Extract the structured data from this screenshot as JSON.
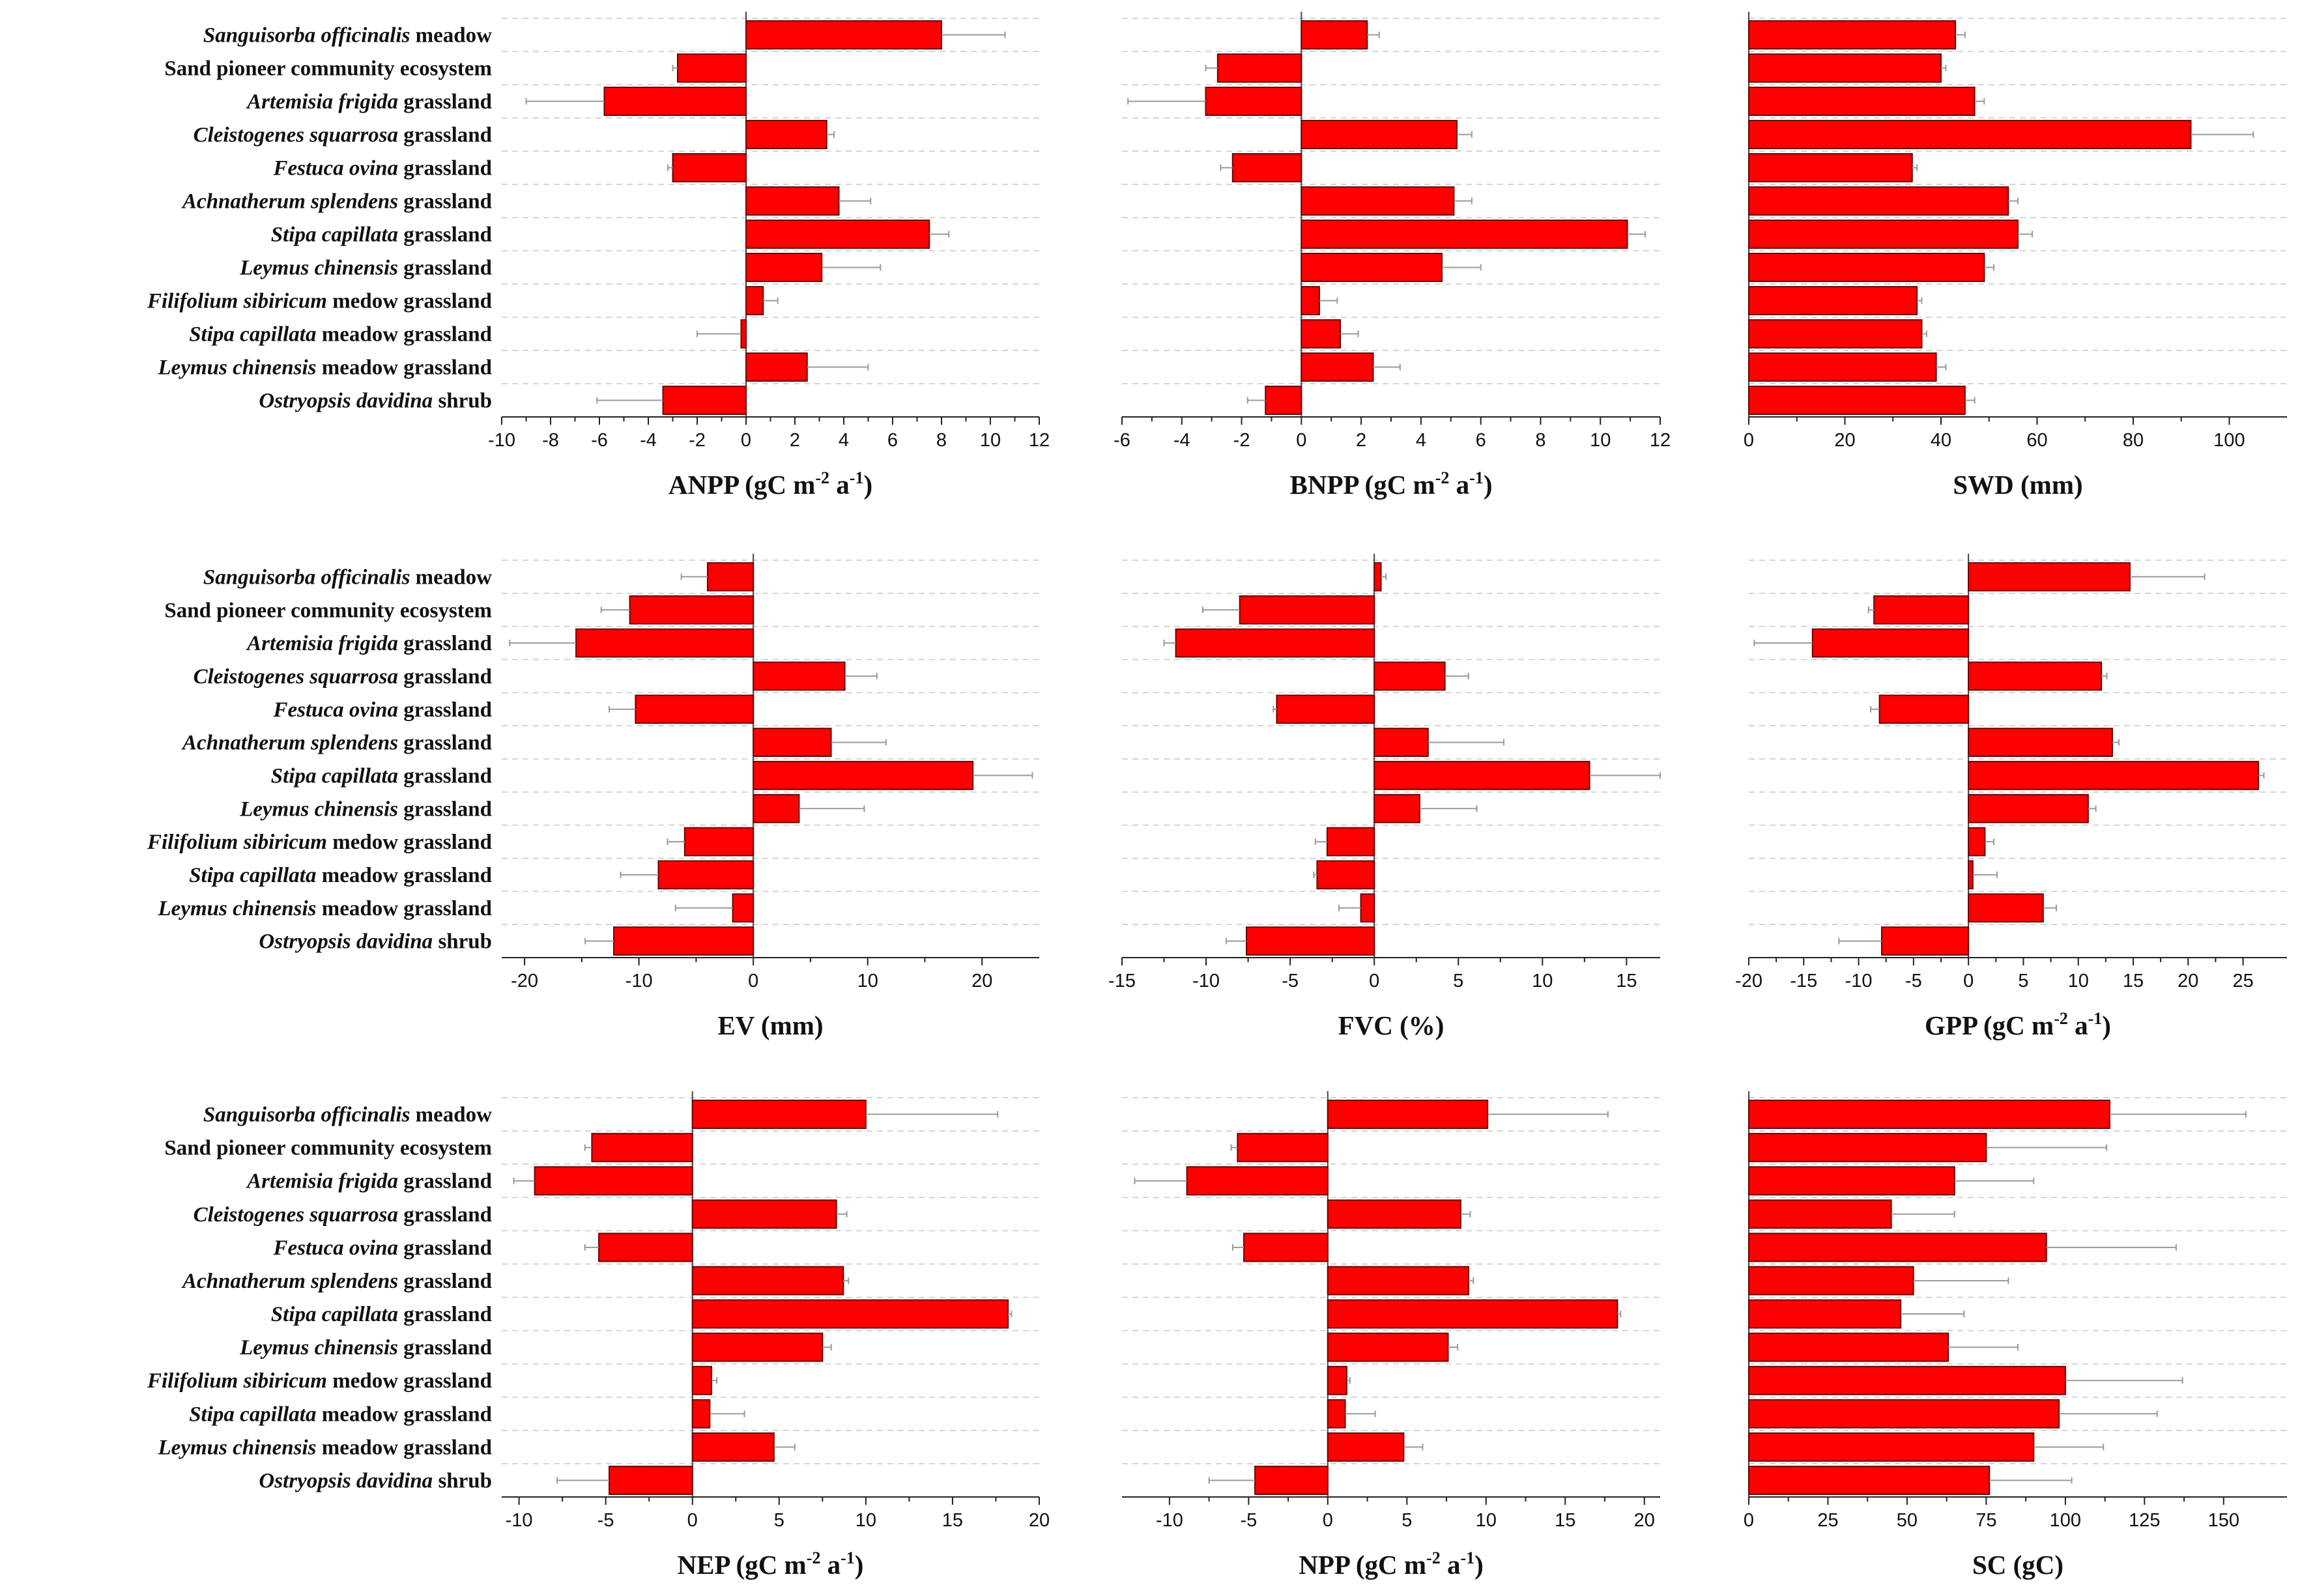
{
  "chart_data": {
    "type": "bar",
    "orientation": "horizontal",
    "categories": [
      {
        "italic": "Sanguisorba officinalis",
        "rest": " meadow"
      },
      {
        "italic": "",
        "rest": "Sand pioneer community ecosystem"
      },
      {
        "italic": "Artemisia frigida",
        "rest": " grassland"
      },
      {
        "italic": "Cleistogenes squarrosa",
        "rest": " grassland"
      },
      {
        "italic": "Festuca ovina",
        "rest": " grassland"
      },
      {
        "italic": "Achnatherum splendens",
        "rest": " grassland"
      },
      {
        "italic": "Stipa capillata",
        "rest": " grassland"
      },
      {
        "italic": "Leymus chinensis",
        "rest": " grassland"
      },
      {
        "italic": "Filifolium sibiricum",
        "rest": " medow grassland"
      },
      {
        "italic": "Stipa capillata",
        "rest": " meadow grassland"
      },
      {
        "italic": "Leymus chinensis",
        "rest": " meadow grassland"
      },
      {
        "italic": "Ostryopsis davidina",
        "rest": " shrub"
      }
    ],
    "colors": {
      "bar": "#ff0000",
      "bar_edge": "#6b0000",
      "error_bar": "#9a9a9a",
      "grid": "#c8c8c8"
    },
    "panels": [
      {
        "id": "anpp",
        "xlabel": {
          "main": "ANPP (gC m",
          "sup1": "-2",
          "mid": " a",
          "sup2": "-1",
          "end": ")"
        },
        "xlim": [
          -10,
          12
        ],
        "ticks": [
          -10,
          -8,
          -6,
          -4,
          -2,
          0,
          2,
          4,
          6,
          8,
          10,
          12
        ],
        "values": [
          8.0,
          -2.8,
          -5.8,
          3.3,
          -3.0,
          3.8,
          7.5,
          3.1,
          0.7,
          -0.2,
          2.5,
          -3.4
        ],
        "errors": [
          2.6,
          0.2,
          3.2,
          0.3,
          0.2,
          1.3,
          0.8,
          2.4,
          0.6,
          1.8,
          2.5,
          2.7
        ]
      },
      {
        "id": "bnpp",
        "xlabel": {
          "main": "BNPP (gC m",
          "sup1": "-2",
          "mid": " a",
          "sup2": "-1",
          "end": ")"
        },
        "xlim": [
          -6,
          12
        ],
        "ticks": [
          -6,
          -4,
          -2,
          0,
          2,
          4,
          6,
          8,
          10,
          12
        ],
        "values": [
          2.2,
          -2.8,
          -3.2,
          5.2,
          -2.3,
          5.1,
          10.9,
          4.7,
          0.6,
          1.3,
          2.4,
          -1.2
        ],
        "errors": [
          0.4,
          0.4,
          2.6,
          0.5,
          0.4,
          0.6,
          0.6,
          1.3,
          0.6,
          0.6,
          0.9,
          0.6
        ]
      },
      {
        "id": "swd",
        "xlabel": {
          "main": "SWD (mm)"
        },
        "xlim": [
          0,
          112
        ],
        "ticks": [
          0,
          20,
          40,
          60,
          80,
          100
        ],
        "values": [
          43,
          40,
          47,
          92,
          34,
          54,
          56,
          49,
          35,
          36,
          39,
          45
        ],
        "errors": [
          2,
          1,
          2,
          13,
          1,
          2,
          3,
          2,
          1,
          1,
          2,
          2
        ]
      },
      {
        "id": "ev",
        "xlabel": {
          "main": "EV (mm)"
        },
        "xlim": [
          -22,
          25
        ],
        "ticks": [
          -20,
          -10,
          0,
          10,
          20
        ],
        "values": [
          -4.0,
          -10.8,
          -15.5,
          8.0,
          -10.3,
          6.8,
          19.2,
          4.0,
          -6.0,
          -8.3,
          -1.8,
          -12.2
        ],
        "errors": [
          2.3,
          2.5,
          5.8,
          2.8,
          2.3,
          4.8,
          5.2,
          5.7,
          1.5,
          3.3,
          5.0,
          2.5
        ]
      },
      {
        "id": "fvc",
        "xlabel": {
          "main": "FVC (%)"
        },
        "xlim": [
          -15,
          17
        ],
        "ticks": [
          -15,
          -10,
          -5,
          0,
          5,
          10,
          15
        ],
        "values": [
          0.4,
          -8.0,
          -11.8,
          4.2,
          -5.8,
          3.2,
          12.8,
          2.7,
          -2.8,
          -3.4,
          -0.8,
          -7.6
        ],
        "errors": [
          0.3,
          2.2,
          0.7,
          1.4,
          0.2,
          4.5,
          4.2,
          3.4,
          0.7,
          0.2,
          1.3,
          1.2
        ]
      },
      {
        "id": "gpp",
        "xlabel": {
          "main": "GPP (gC m",
          "sup1": "-2",
          "mid": " a",
          "sup2": "-1",
          "end": ")"
        },
        "xlim": [
          -20,
          29
        ],
        "ticks": [
          -20,
          -15,
          -10,
          -5,
          0,
          5,
          10,
          15,
          20,
          25
        ],
        "values": [
          14.7,
          -8.6,
          -14.2,
          12.1,
          -8.1,
          13.1,
          26.4,
          10.9,
          1.5,
          0.4,
          6.8,
          -7.9
        ],
        "errors": [
          6.8,
          0.5,
          5.3,
          0.5,
          0.8,
          0.6,
          0.5,
          0.7,
          0.8,
          2.2,
          1.2,
          3.9
        ]
      },
      {
        "id": "nep",
        "xlabel": {
          "main": "NEP (gC m",
          "sup1": "-2",
          "mid": " a",
          "sup2": "-1",
          "end": ")"
        },
        "xlim": [
          -11,
          20
        ],
        "ticks": [
          -10,
          -5,
          0,
          5,
          10,
          15,
          20
        ],
        "values": [
          10.0,
          -5.8,
          -9.1,
          8.3,
          -5.4,
          8.7,
          18.2,
          7.5,
          1.1,
          1.0,
          4.7,
          -4.8
        ],
        "errors": [
          7.6,
          0.4,
          1.2,
          0.6,
          0.8,
          0.3,
          0.2,
          0.5,
          0.3,
          2.0,
          1.2,
          3.0
        ]
      },
      {
        "id": "npp",
        "xlabel": {
          "main": "NPP (gC m",
          "sup1": "-2",
          "mid": " a",
          "sup2": "-1",
          "end": ")"
        },
        "xlim": [
          -13,
          21
        ],
        "ticks": [
          -10,
          -5,
          0,
          5,
          10,
          15,
          20
        ],
        "values": [
          10.1,
          -5.7,
          -8.9,
          8.4,
          -5.3,
          8.9,
          18.3,
          7.6,
          1.2,
          1.1,
          4.8,
          -4.6
        ],
        "errors": [
          7.6,
          0.4,
          3.3,
          0.6,
          0.7,
          0.3,
          0.2,
          0.6,
          0.2,
          1.9,
          1.2,
          2.9
        ]
      },
      {
        "id": "sc",
        "xlabel": {
          "main": "SC (gC)"
        },
        "xlim": [
          0,
          170
        ],
        "ticks": [
          0,
          25,
          50,
          75,
          100,
          125,
          150
        ],
        "values": [
          114,
          75,
          65,
          45,
          94,
          52,
          48,
          63,
          100,
          98,
          90,
          76
        ],
        "errors": [
          43,
          38,
          25,
          20,
          41,
          30,
          20,
          22,
          37,
          31,
          22,
          26
        ]
      }
    ]
  }
}
